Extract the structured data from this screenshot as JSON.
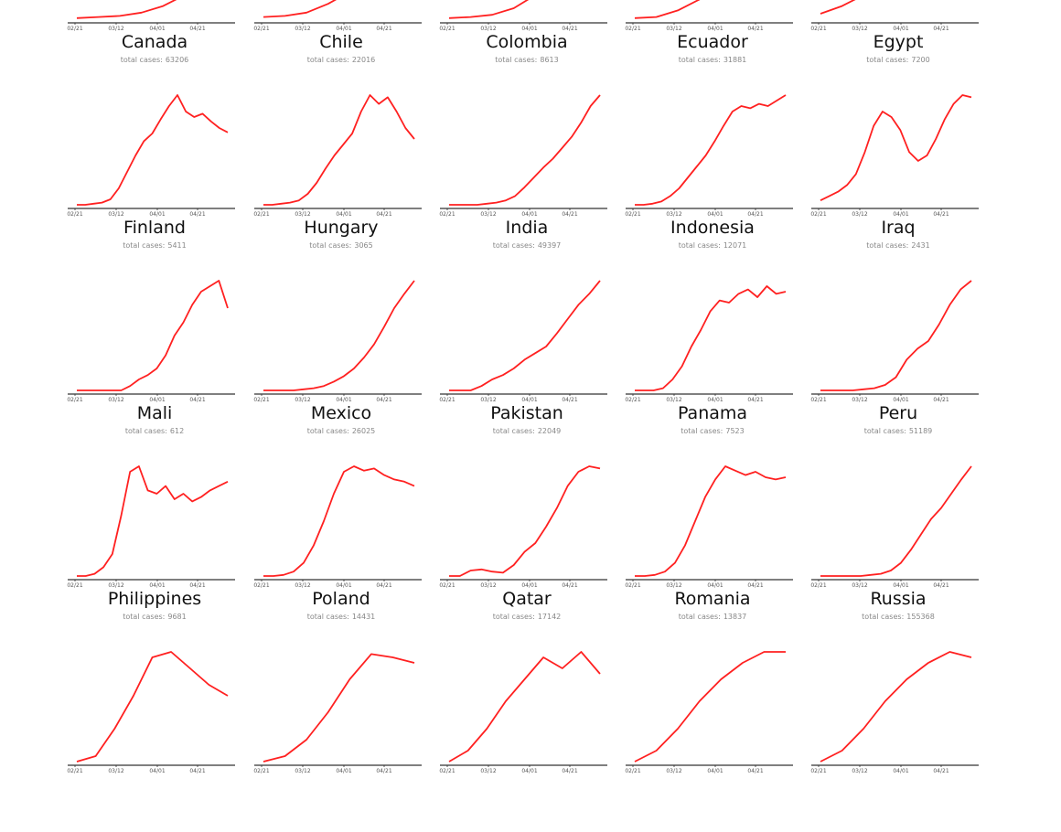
{
  "chart_data": {
    "type": "line",
    "layout": "small-multiples",
    "title": "",
    "x_ticks": [
      "02/21",
      "03/12",
      "04/01",
      "04/21"
    ],
    "x_range": [
      "02/21",
      "05/10"
    ],
    "line_color": "#ff2020",
    "total_label": "total cases:",
    "grid": false,
    "panels": [
      {
        "name": "Canada",
        "total": "63206",
        "y": [
          0.01,
          0.02,
          0.03,
          0.06,
          0.12,
          0.22,
          0.33,
          0.4
        ]
      },
      {
        "name": "Chile",
        "total": "22016",
        "y": [
          0.02,
          0.03,
          0.06,
          0.14,
          0.25,
          0.38,
          0.48,
          0.55
        ]
      },
      {
        "name": "Colombia",
        "total": "8613",
        "y": [
          0.01,
          0.02,
          0.04,
          0.1,
          0.22,
          0.33,
          0.42,
          0.5
        ]
      },
      {
        "name": "Ecuador",
        "total": "31881",
        "y": [
          0.01,
          0.02,
          0.08,
          0.18,
          0.32,
          0.4,
          0.42,
          0.45
        ]
      },
      {
        "name": "Egypt",
        "total": "7200",
        "y": [
          0.05,
          0.12,
          0.22,
          0.32,
          0.42,
          0.5,
          0.55,
          0.6
        ]
      },
      {
        "name": "Finland",
        "total": "5411",
        "y": [
          0.0,
          0.0,
          0.01,
          0.02,
          0.05,
          0.15,
          0.3,
          0.45,
          0.58,
          0.65,
          0.78,
          0.9,
          1.0,
          0.85,
          0.8,
          0.83,
          0.76,
          0.7,
          0.66
        ]
      },
      {
        "name": "Hungary",
        "total": "3065",
        "y": [
          0.0,
          0.0,
          0.01,
          0.02,
          0.04,
          0.1,
          0.2,
          0.33,
          0.45,
          0.55,
          0.65,
          0.85,
          1.0,
          0.92,
          0.98,
          0.85,
          0.7,
          0.6
        ]
      },
      {
        "name": "India",
        "total": "49397",
        "y": [
          0.0,
          0.0,
          0.0,
          0.0,
          0.01,
          0.02,
          0.04,
          0.08,
          0.16,
          0.25,
          0.34,
          0.42,
          0.52,
          0.62,
          0.75,
          0.9,
          1.0
        ]
      },
      {
        "name": "Indonesia",
        "total": "12071",
        "y": [
          0.0,
          0.0,
          0.01,
          0.03,
          0.08,
          0.15,
          0.25,
          0.35,
          0.45,
          0.58,
          0.72,
          0.85,
          0.9,
          0.88,
          0.92,
          0.9,
          0.95,
          1.0
        ]
      },
      {
        "name": "Iraq",
        "total": "2431",
        "y": [
          0.04,
          0.08,
          0.12,
          0.18,
          0.28,
          0.48,
          0.72,
          0.85,
          0.8,
          0.68,
          0.48,
          0.4,
          0.45,
          0.6,
          0.78,
          0.92,
          1.0,
          0.98
        ]
      },
      {
        "name": "Mali",
        "total": "612",
        "y": [
          0.0,
          0.0,
          0.0,
          0.0,
          0.0,
          0.0,
          0.04,
          0.1,
          0.14,
          0.2,
          0.32,
          0.5,
          0.62,
          0.78,
          0.9,
          0.95,
          1.0,
          0.75
        ]
      },
      {
        "name": "Mexico",
        "total": "26025",
        "y": [
          0.0,
          0.0,
          0.0,
          0.0,
          0.01,
          0.02,
          0.04,
          0.08,
          0.13,
          0.2,
          0.3,
          0.42,
          0.58,
          0.75,
          0.88,
          1.0
        ]
      },
      {
        "name": "Pakistan",
        "total": "22049",
        "y": [
          0.0,
          0.0,
          0.0,
          0.04,
          0.1,
          0.14,
          0.2,
          0.28,
          0.34,
          0.4,
          0.52,
          0.65,
          0.78,
          0.88,
          1.0
        ]
      },
      {
        "name": "Panama",
        "total": "7523",
        "y": [
          0.0,
          0.0,
          0.0,
          0.02,
          0.1,
          0.22,
          0.4,
          0.55,
          0.72,
          0.82,
          0.8,
          0.88,
          0.92,
          0.85,
          0.95,
          0.88,
          0.9
        ]
      },
      {
        "name": "Peru",
        "total": "51189",
        "y": [
          0.0,
          0.0,
          0.0,
          0.0,
          0.01,
          0.02,
          0.05,
          0.12,
          0.28,
          0.38,
          0.45,
          0.6,
          0.78,
          0.92,
          1.0
        ]
      },
      {
        "name": "Philippines",
        "total": "9681",
        "y": [
          0.0,
          0.0,
          0.02,
          0.08,
          0.2,
          0.55,
          0.95,
          1.0,
          0.78,
          0.75,
          0.82,
          0.7,
          0.75,
          0.68,
          0.72,
          0.78,
          0.82,
          0.86
        ]
      },
      {
        "name": "Poland",
        "total": "14431",
        "y": [
          0.0,
          0.0,
          0.01,
          0.04,
          0.12,
          0.28,
          0.5,
          0.75,
          0.95,
          1.0,
          0.96,
          0.98,
          0.92,
          0.88,
          0.86,
          0.82
        ]
      },
      {
        "name": "Qatar",
        "total": "17142",
        "y": [
          0.0,
          0.0,
          0.05,
          0.06,
          0.04,
          0.03,
          0.1,
          0.22,
          0.3,
          0.45,
          0.62,
          0.82,
          0.95,
          1.0,
          0.98
        ]
      },
      {
        "name": "Romania",
        "total": "13837",
        "y": [
          0.0,
          0.0,
          0.01,
          0.04,
          0.12,
          0.28,
          0.5,
          0.72,
          0.88,
          1.0,
          0.96,
          0.92,
          0.95,
          0.9,
          0.88,
          0.9
        ]
      },
      {
        "name": "Russia",
        "total": "155368",
        "y": [
          0.0,
          0.0,
          0.0,
          0.0,
          0.0,
          0.01,
          0.02,
          0.05,
          0.12,
          0.24,
          0.38,
          0.52,
          0.62,
          0.75,
          0.88,
          1.0
        ]
      },
      {
        "name": "",
        "total": "",
        "y": [
          0.0,
          0.05,
          0.3,
          0.6,
          0.95,
          1.0,
          0.85,
          0.7,
          0.6
        ]
      },
      {
        "name": "",
        "total": "",
        "y": [
          0.0,
          0.05,
          0.2,
          0.45,
          0.75,
          0.98,
          0.95,
          0.9
        ]
      },
      {
        "name": "",
        "total": "",
        "y": [
          0.0,
          0.1,
          0.3,
          0.55,
          0.75,
          0.95,
          0.85,
          1.0,
          0.8
        ]
      },
      {
        "name": "",
        "total": "",
        "y": [
          0.0,
          0.1,
          0.3,
          0.55,
          0.75,
          0.9,
          1.0,
          1.0
        ]
      },
      {
        "name": "",
        "total": "",
        "y": [
          0.0,
          0.1,
          0.3,
          0.55,
          0.75,
          0.9,
          1.0,
          0.95
        ]
      }
    ]
  }
}
